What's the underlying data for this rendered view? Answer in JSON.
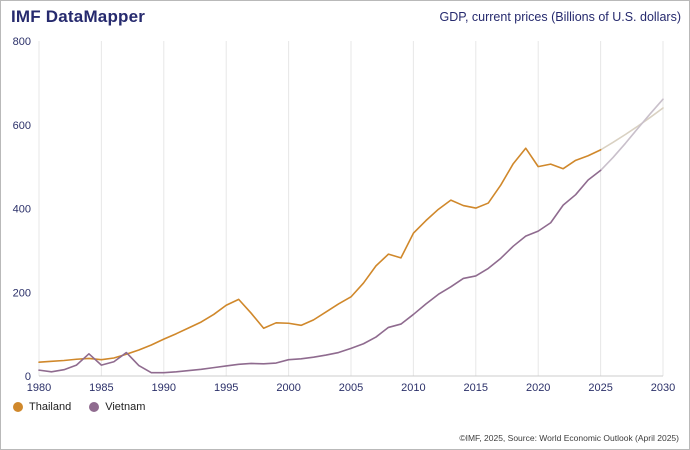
{
  "header": {
    "brand": "IMF DataMapper",
    "chart_title": "GDP, current prices (Billions of U.S. dollars)"
  },
  "chart_data": {
    "type": "line",
    "title": "GDP, current prices (Billions of U.S. dollars)",
    "xlabel": "",
    "ylabel": "",
    "ylim": [
      0,
      800
    ],
    "y_ticks": [
      0,
      200,
      400,
      600,
      800
    ],
    "x_start": 1980,
    "x_end": 2030,
    "x_ticks": [
      1980,
      1985,
      1990,
      1995,
      2000,
      2005,
      2010,
      2015,
      2020,
      2025,
      2030
    ],
    "grid": "vertical-only",
    "legend_position": "bottom-left",
    "projection_start_year": 2025,
    "series": [
      {
        "name": "Thailand",
        "color": "#d0882b",
        "projection_color": "#d9d1c2",
        "values": [
          33,
          35,
          37,
          40,
          42,
          39,
          43,
          52,
          62,
          74,
          88,
          101,
          115,
          129,
          147,
          169,
          183,
          150,
          114,
          127,
          126,
          121,
          134,
          153,
          172,
          189,
          222,
          263,
          291,
          282,
          341,
          371,
          398,
          420,
          407,
          401,
          413,
          456,
          507,
          544,
          500,
          506,
          495,
          515,
          526,
          540,
          558,
          577,
          597,
          618,
          640
        ]
      },
      {
        "name": "Vietnam",
        "color": "#8f6b8f",
        "projection_color": "#c9c0cb",
        "values": [
          14,
          10,
          15,
          26,
          53,
          26,
          34,
          56,
          25,
          8,
          8,
          10,
          13,
          16,
          20,
          24,
          28,
          30,
          29,
          31,
          39,
          41,
          45,
          50,
          56,
          66,
          77,
          93,
          116,
          124,
          147,
          172,
          195,
          213,
          233,
          239,
          257,
          281,
          310,
          334,
          346,
          366,
          408,
          433,
          468,
          491,
          522,
          556,
          592,
          627,
          661
        ]
      }
    ]
  },
  "footer": {
    "attribution": "©IMF, 2025, Source: World Economic Outlook (April 2025)"
  }
}
